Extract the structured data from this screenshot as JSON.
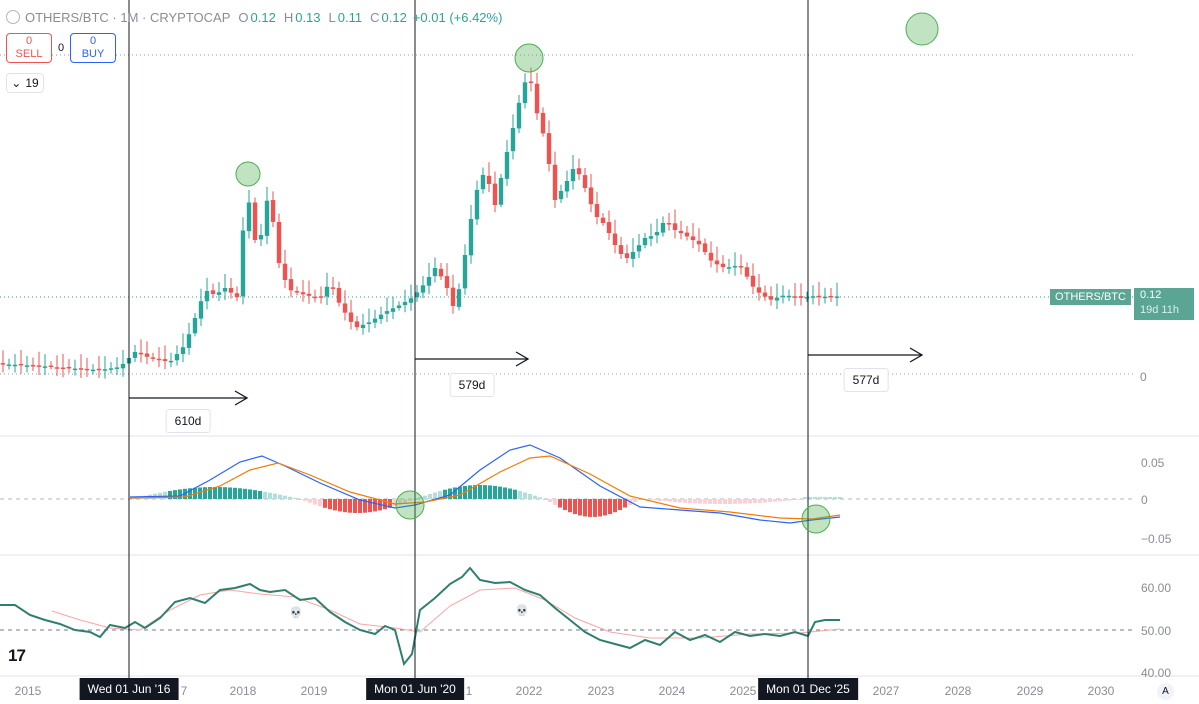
{
  "header": {
    "title": "OTHERS/BTC · 1M · CRYPTOCAP",
    "open_label": "O",
    "open_value": "0.12",
    "high_label": "H",
    "high_value": "0.13",
    "low_label": "L",
    "low_value": "0.11",
    "close_label": "C",
    "close_value": "0.12",
    "change": "+0.01 (+6.42%)"
  },
  "trade": {
    "sell_count": "0",
    "sell_label": "SELL",
    "spread": "0",
    "buy_count": "0",
    "buy_label": "BUY"
  },
  "indicators_toggle": {
    "count": "19"
  },
  "price_axis": {
    "zero": "0",
    "symbol_tag": "OTHERS/BTC",
    "last_price": "0.12",
    "countdown": "19d 11h"
  },
  "macd_axis": [
    "0.05",
    "0",
    "−0.05"
  ],
  "rsi_axis": [
    "60.00",
    "50.00",
    "40.00"
  ],
  "time_axis": [
    "2015",
    "2018",
    "2019",
    "2022",
    "2023",
    "2024",
    "2027",
    "2028",
    "2029",
    "2030"
  ],
  "time_axis_partial": [
    "7",
    "1",
    "2025"
  ],
  "vertical_markers": [
    {
      "label": "Wed 01 Jun '16"
    },
    {
      "label": "Mon 01 Jun '20"
    },
    {
      "label": "Mon 01 Dec '25"
    }
  ],
  "durations": [
    "610d",
    "579d",
    "577d"
  ],
  "colors": {
    "up": "#26a69a",
    "down": "#ef5350",
    "macd": "#2962ff",
    "signal": "#f57c00",
    "highlight": "#4caf50",
    "rsi": "#2f7f6f"
  },
  "icons": {
    "logo": "tradingview-logo",
    "auto_scale": "auto-scale-button",
    "death": "skull-icon"
  },
  "logo_text": "17",
  "auto_label": "A",
  "skull_glyph": "💀"
}
